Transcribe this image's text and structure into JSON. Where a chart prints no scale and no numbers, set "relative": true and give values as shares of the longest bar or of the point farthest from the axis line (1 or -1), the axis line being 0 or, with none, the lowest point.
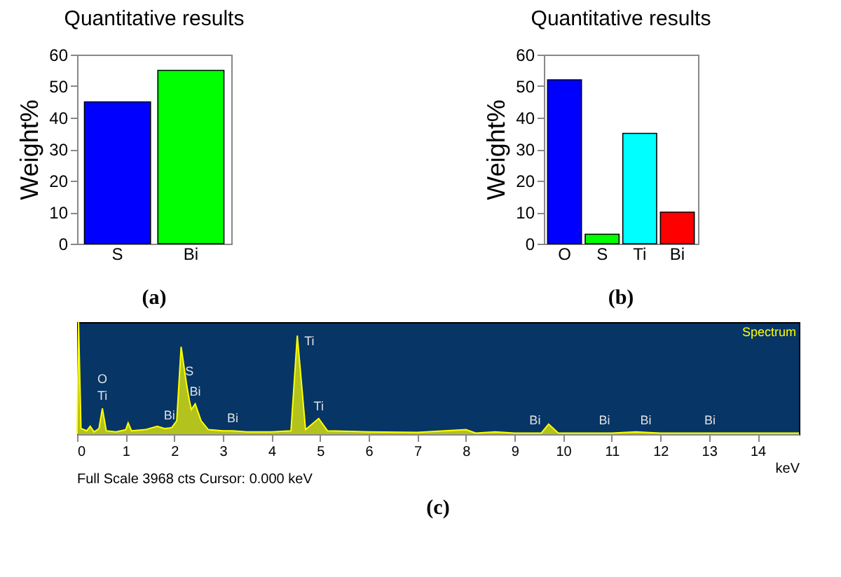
{
  "chart_data": [
    {
      "type": "bar",
      "title": "Quantitative results",
      "ylabel": "Weight%",
      "categories": [
        "S",
        "Bi"
      ],
      "values": [
        45,
        55
      ],
      "colors": [
        "#0000ff",
        "#00ff00"
      ],
      "ylim": [
        0,
        60
      ],
      "yticks": [
        0,
        10,
        20,
        30,
        40,
        50,
        60
      ],
      "annotations": [
        "(a)"
      ]
    },
    {
      "type": "bar",
      "title": "Quantitative results",
      "ylabel": "Weight%",
      "categories": [
        "O",
        "S",
        "Ti",
        "Bi"
      ],
      "values": [
        52,
        3,
        35,
        10
      ],
      "colors": [
        "#0000ff",
        "#00ff00",
        "#00ffff",
        "#ff0000"
      ],
      "ylim": [
        0,
        60
      ],
      "yticks": [
        0,
        10,
        20,
        30,
        40,
        50,
        60
      ],
      "annotations": [
        "(b)"
      ]
    },
    {
      "type": "area",
      "relative": true,
      "xlabel": "keV",
      "xlim": [
        0,
        14.85
      ],
      "xticks": [
        0,
        1,
        2,
        3,
        4,
        5,
        6,
        7,
        8,
        9,
        10,
        11,
        12,
        13,
        14
      ],
      "x": [
        0,
        0.03,
        0.08,
        0.2,
        0.27,
        0.35,
        0.45,
        0.52,
        0.6,
        0.8,
        1.0,
        1.05,
        1.12,
        1.4,
        1.65,
        1.8,
        1.9,
        1.95,
        2.05,
        2.14,
        2.25,
        2.31,
        2.35,
        2.43,
        2.55,
        2.7,
        3.0,
        3.2,
        3.5,
        4.0,
        4.4,
        4.53,
        4.7,
        4.97,
        5.15,
        6.0,
        7.0,
        8.0,
        8.2,
        8.6,
        9.0,
        9.42,
        9.55,
        9.7,
        9.9,
        10.85,
        11.0,
        11.5,
        11.7,
        12.0,
        13.02,
        14.85
      ],
      "series": [
        {
          "name": "Spectrum",
          "color": "#ffff00",
          "values": [
            0,
            1.0,
            0.05,
            0.03,
            0.07,
            0.02,
            0.05,
            0.23,
            0.03,
            0.02,
            0.04,
            0.1,
            0.03,
            0.04,
            0.07,
            0.05,
            0.055,
            0.06,
            0.12,
            0.78,
            0.45,
            0.3,
            0.22,
            0.27,
            0.12,
            0.04,
            0.03,
            0.03,
            0.02,
            0.02,
            0.03,
            0.88,
            0.04,
            0.14,
            0.03,
            0.02,
            0.015,
            0.04,
            0.01,
            0.02,
            0.01,
            0.01,
            0.01,
            0.09,
            0.01,
            0.01,
            0.01,
            0.02,
            0.015,
            0.01,
            0.01,
            0.01
          ]
        }
      ],
      "annotations": [
        {
          "text": "Ti",
          "x": 0.52,
          "y": 0.23
        },
        {
          "text": "O",
          "x": 0.52,
          "y": 0.23
        },
        {
          "text": "Bi",
          "x": 1.9,
          "y": 0.055
        },
        {
          "text": "Bi",
          "x": 2.43,
          "y": 0.27
        },
        {
          "text": "S",
          "x": 2.31,
          "y": 0.3
        },
        {
          "text": "Bi",
          "x": 3.2,
          "y": 0.03
        },
        {
          "text": "Ti",
          "x": 4.53,
          "y": 0.88
        },
        {
          "text": "Ti",
          "x": 4.97,
          "y": 0.14
        },
        {
          "text": "Bi",
          "x": 9.42,
          "y": 0.01
        },
        {
          "text": "Bi",
          "x": 10.85,
          "y": 0.01
        },
        {
          "text": "Bi",
          "x": 11.7,
          "y": 0.015
        },
        {
          "text": "Bi",
          "x": 13.02,
          "y": 0.01
        },
        "Full Scale 3968 cts  Cursor: 0.000 keV",
        "(c)"
      ]
    }
  ]
}
